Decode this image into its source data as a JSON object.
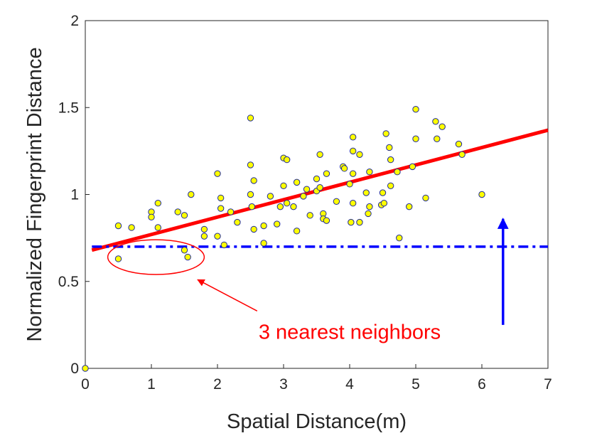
{
  "chart_data": {
    "type": "scatter",
    "xlabel": "Spatial Distance(m)",
    "ylabel": "Normalized Fingerprint Distance",
    "xlim": [
      0,
      7
    ],
    "ylim": [
      0,
      2
    ],
    "x_ticks": [
      0,
      1,
      2,
      3,
      4,
      5,
      6,
      7
    ],
    "y_ticks": [
      0,
      0.5,
      1,
      1.5,
      2
    ],
    "x_tick_labels": [
      "0",
      "1",
      "2",
      "3",
      "4",
      "5",
      "6",
      "7"
    ],
    "y_tick_labels": [
      "0",
      "0.5",
      "1",
      "1.5",
      "2"
    ],
    "grid": false,
    "points": {
      "color": "#ffff00",
      "edge_color": "#1f2a9a",
      "x": [
        0.0,
        0.5,
        0.5,
        0.7,
        1.0,
        1.0,
        1.1,
        1.1,
        1.4,
        1.5,
        1.5,
        1.55,
        1.6,
        1.8,
        1.8,
        2.0,
        2.0,
        2.05,
        2.05,
        2.1,
        2.2,
        2.3,
        2.5,
        2.5,
        2.5,
        2.52,
        2.55,
        2.55,
        2.7,
        2.7,
        2.8,
        2.9,
        2.95,
        3.0,
        3.0,
        3.05,
        3.05,
        3.15,
        3.2,
        3.2,
        3.3,
        3.35,
        3.4,
        3.5,
        3.5,
        3.55,
        3.55,
        3.6,
        3.6,
        3.65,
        3.65,
        3.8,
        3.9,
        3.92,
        4.0,
        4.02,
        4.05,
        4.05,
        4.05,
        4.05,
        4.15,
        4.15,
        4.25,
        4.28,
        4.3,
        4.3,
        4.48,
        4.5,
        4.52,
        4.55,
        4.6,
        4.62,
        4.62,
        4.72,
        4.75,
        4.9,
        4.95,
        5.0,
        5.0,
        5.15,
        5.3,
        5.32,
        5.4,
        5.65,
        5.7,
        6.0
      ],
      "y": [
        0.0,
        0.82,
        0.63,
        0.81,
        0.9,
        0.87,
        0.95,
        0.81,
        0.9,
        0.68,
        0.88,
        0.64,
        1.0,
        0.8,
        0.76,
        0.76,
        1.12,
        0.98,
        0.92,
        0.71,
        0.9,
        0.84,
        1.44,
        1.17,
        1.0,
        0.93,
        0.8,
        1.08,
        0.72,
        0.82,
        0.99,
        0.83,
        0.93,
        1.21,
        1.05,
        0.95,
        1.2,
        0.93,
        1.07,
        0.79,
        0.99,
        1.03,
        0.88,
        1.09,
        1.02,
        1.23,
        1.04,
        0.89,
        0.86,
        0.85,
        1.12,
        0.96,
        1.16,
        1.15,
        1.06,
        0.84,
        1.33,
        1.25,
        1.12,
        0.95,
        1.23,
        0.84,
        1.01,
        0.89,
        0.93,
        1.13,
        0.94,
        1.01,
        0.95,
        1.35,
        1.27,
        1.05,
        1.2,
        1.13,
        0.75,
        0.93,
        1.16,
        1.49,
        1.32,
        0.98,
        1.42,
        1.32,
        1.39,
        1.29,
        1.23,
        1.0
      ]
    },
    "fit_line": {
      "color": "#ff0000",
      "x": [
        0.1,
        7.0
      ],
      "y": [
        0.68,
        1.37
      ]
    },
    "threshold_line": {
      "color": "#0000ff",
      "style": "dash-dot",
      "x": [
        0.1,
        7.0
      ],
      "y": [
        0.7,
        0.7
      ]
    },
    "ellipse": {
      "color": "#ff0000",
      "cx": 1.07,
      "cy": 0.64,
      "rx": 0.73,
      "ry": 0.1
    },
    "annotation": {
      "text": "3 nearest neighbors",
      "color": "#ff0000",
      "x": 4.0,
      "y": 0.21,
      "arrow_from": [
        2.6,
        0.33
      ],
      "arrow_to": [
        1.7,
        0.51
      ]
    },
    "up_arrow": {
      "color": "#0000ff",
      "x": 6.32,
      "from_y": 0.25,
      "to_y": 0.86
    }
  }
}
